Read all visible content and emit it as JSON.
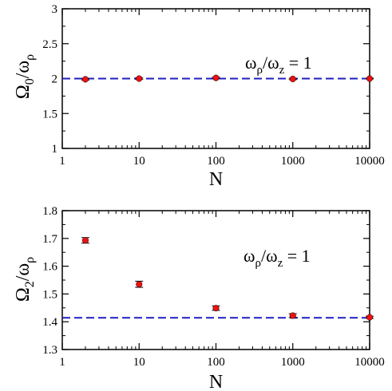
{
  "chart_data": [
    {
      "type": "scatter",
      "x_scale": "log",
      "xlim": [
        1,
        10000
      ],
      "ylim": [
        1,
        3
      ],
      "x_ticks": [
        "1",
        "10",
        "100",
        "1000",
        "10000"
      ],
      "y_ticks": [
        "1",
        "1.5",
        "2",
        "2.5",
        "3"
      ],
      "xlabel": "N",
      "ylabel": {
        "base": "Ω",
        "sub": "0",
        "slash": "/ω",
        "sub2": "ρ"
      },
      "annotation": {
        "a": "ω",
        "a_sub": "ρ",
        "mid": "/ω",
        "b_sub": "z",
        "tail": " = 1"
      },
      "reference_line": {
        "y": 2.0,
        "style": "dashed",
        "color": "#1f1fbf"
      },
      "points": [
        {
          "x": 2,
          "y": 1.99,
          "err": 0.01
        },
        {
          "x": 10,
          "y": 2.0,
          "err": 0.01
        },
        {
          "x": 100,
          "y": 2.01,
          "err": 0.01
        },
        {
          "x": 1000,
          "y": 1.995,
          "err": 0.01
        },
        {
          "x": 10000,
          "y": 2.0,
          "err": 0.005
        }
      ],
      "marker_color": "#ee1111"
    },
    {
      "type": "scatter",
      "x_scale": "log",
      "xlim": [
        1,
        10000
      ],
      "ylim": [
        1.3,
        1.8
      ],
      "x_ticks": [
        "1",
        "10",
        "100",
        "1000",
        "10000"
      ],
      "y_ticks": [
        "1.3",
        "1.4",
        "1.5",
        "1.6",
        "1.7",
        "1.8"
      ],
      "xlabel": "N",
      "ylabel": {
        "base": "Ω",
        "sub": "2",
        "slash": "/ω",
        "sub2": "ρ"
      },
      "annotation": {
        "a": "ω",
        "a_sub": "ρ",
        "mid": "/ω",
        "b_sub": "z",
        "tail": " = 1"
      },
      "reference_line": {
        "y": 1.4142,
        "style": "dashed",
        "color": "#1f1fbf"
      },
      "points": [
        {
          "x": 2,
          "y": 1.693,
          "err": 0.01
        },
        {
          "x": 10,
          "y": 1.535,
          "err": 0.011
        },
        {
          "x": 100,
          "y": 1.449,
          "err": 0.008
        },
        {
          "x": 1000,
          "y": 1.422,
          "err": 0.007
        },
        {
          "x": 10000,
          "y": 1.416,
          "err": 0.004
        }
      ],
      "marker_color": "#ee1111"
    }
  ]
}
